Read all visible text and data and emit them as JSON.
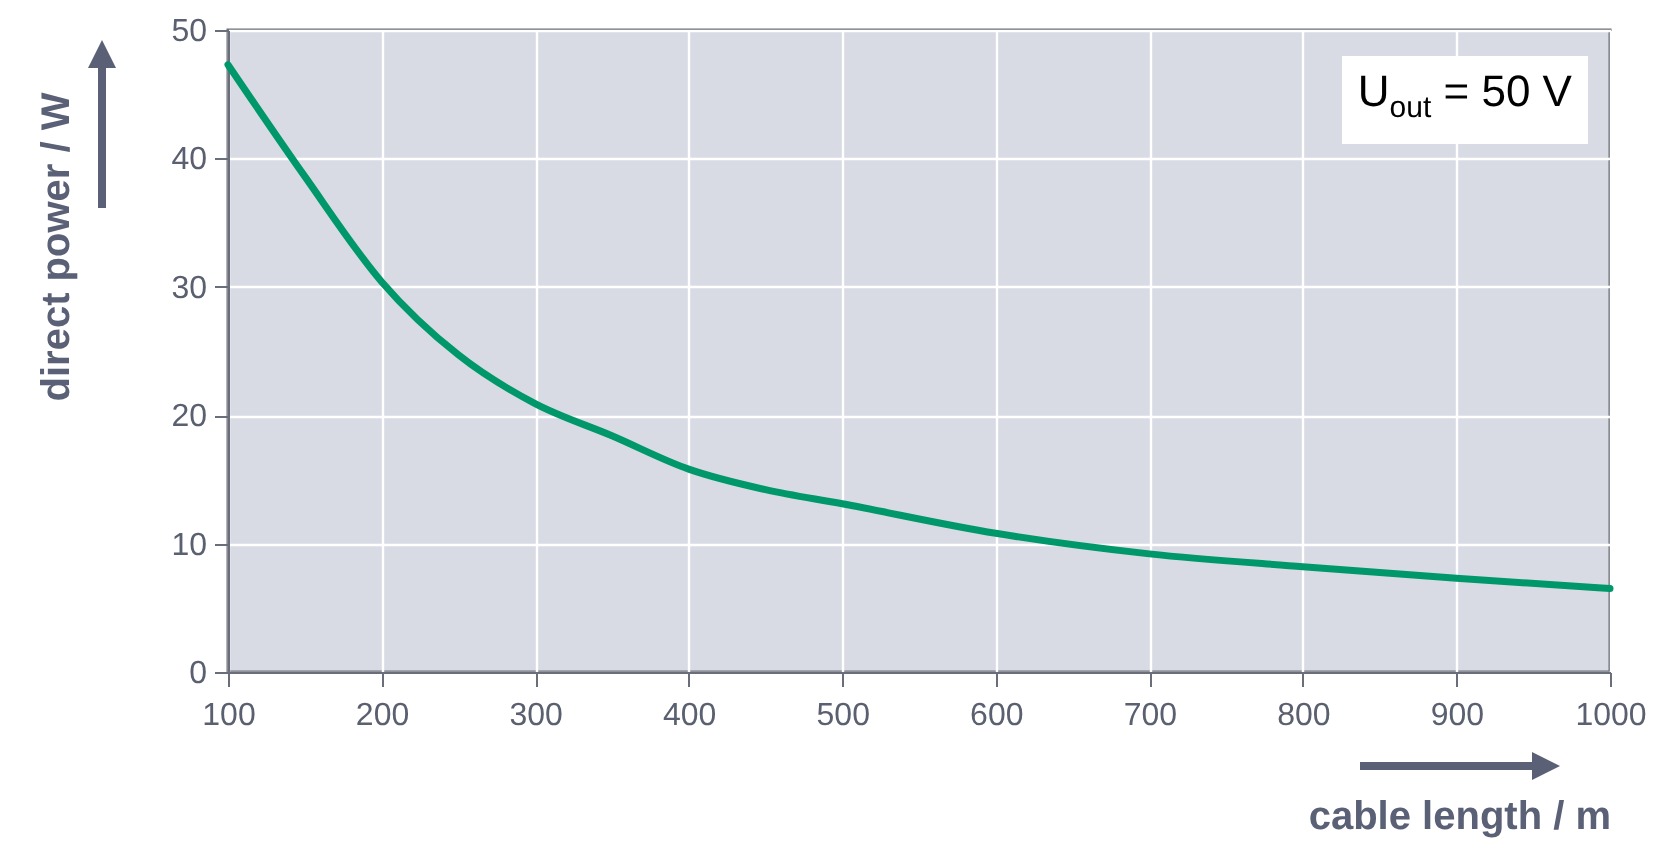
{
  "chart_data": {
    "type": "line",
    "xlabel": "cable length / m",
    "ylabel": "direct power / W",
    "x": [
      100,
      150,
      200,
      250,
      300,
      350,
      400,
      450,
      500,
      600,
      700,
      800,
      900,
      1000
    ],
    "series": [
      {
        "color": "#00986a",
        "values": [
          47.3,
          38.6,
          30.4,
          24.7,
          20.9,
          18.4,
          15.8,
          14.2,
          13.1,
          10.8,
          9.2,
          8.2,
          7.3,
          6.5
        ]
      }
    ],
    "xlim": [
      100,
      1000
    ],
    "xticks": [
      100,
      200,
      300,
      400,
      500,
      600,
      700,
      800,
      900,
      1000
    ],
    "ylim": [
      0,
      50
    ],
    "yticks": [
      0,
      10,
      20,
      30,
      40,
      50
    ],
    "grid": true,
    "marker": "none",
    "line_style": "solid",
    "annotations": [
      "U$_{out}$ = 50 V"
    ]
  }
}
